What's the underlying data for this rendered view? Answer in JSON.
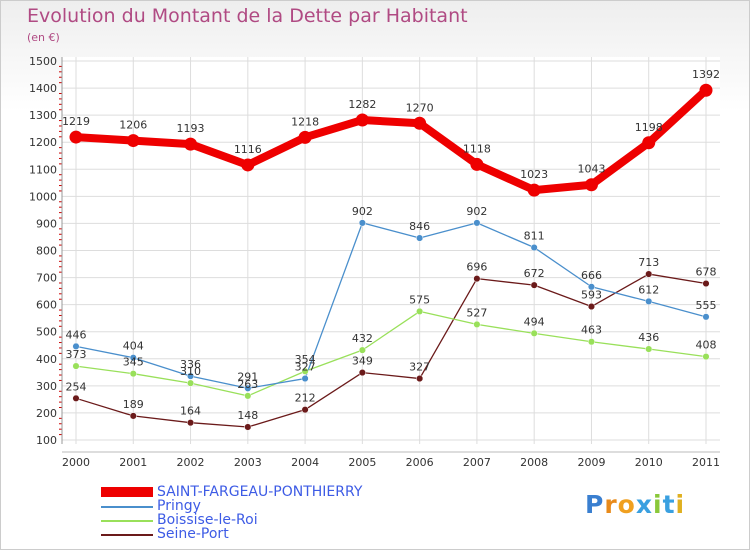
{
  "chart_data": {
    "type": "line",
    "title": "Evolution du Montant de la Dette par Habitant",
    "subtitle": "(en €)",
    "x": [
      "2000",
      "2001",
      "2002",
      "2003",
      "2004",
      "2005",
      "2006",
      "2007",
      "2008",
      "2009",
      "2010",
      "2011"
    ],
    "yticks": [
      "100",
      "200",
      "300",
      "400",
      "500",
      "600",
      "700",
      "800",
      "900",
      "1000",
      "1100",
      "1200",
      "1300",
      "1400",
      "1500"
    ],
    "ylim": [
      100,
      1500
    ],
    "grid": true,
    "legend_position": "bottom-left",
    "series": [
      {
        "name": "SAINT-FARGEAU-PONTHIERRY",
        "color": "#ee0000",
        "values": [
          1219,
          1206,
          1193,
          1116,
          1218,
          1282,
          1270,
          1118,
          1023,
          1043,
          1198,
          1392
        ],
        "labels": [
          "1219",
          "1206",
          "1193",
          "1116",
          "1218",
          "1282",
          "1270",
          "1118",
          "1023",
          "1043",
          "1198",
          "1392"
        ]
      },
      {
        "name": "Pringy",
        "color": "#4a8fcc",
        "values": [
          446,
          404,
          336,
          291,
          327,
          902,
          846,
          902,
          811,
          666,
          612,
          555
        ],
        "labels": [
          "446",
          "404",
          "336",
          "291",
          "327",
          "902",
          "846",
          "902",
          "811",
          "666",
          "612",
          "555"
        ]
      },
      {
        "name": "Boissise-le-Roi",
        "color": "#99e05a",
        "values": [
          373,
          345,
          310,
          263,
          354,
          432,
          575,
          527,
          494,
          463,
          436,
          408
        ],
        "labels": [
          "373",
          "345",
          "310",
          "263",
          "354",
          "432",
          "575",
          "527",
          "494",
          "463",
          "436",
          "408"
        ]
      },
      {
        "name": "Seine-Port",
        "color": "#6b1a1a",
        "values": [
          254,
          189,
          164,
          148,
          212,
          349,
          327,
          696,
          672,
          593,
          713,
          678
        ],
        "labels": [
          "254",
          "189",
          "164",
          "148",
          "212",
          "349",
          "327",
          "696",
          "672",
          "593",
          "713",
          "678"
        ]
      }
    ]
  },
  "legend": [
    "SAINT-FARGEAU-PONTHIERRY",
    "Pringy",
    "Boissise-le-Roi",
    "Seine-Port"
  ],
  "logo": {
    "text": "Proxiti",
    "letters": [
      "P",
      "r",
      "o",
      "x",
      "i",
      "t",
      "i"
    ],
    "colors": [
      "#3a7fd0",
      "#e88a1a",
      "#f0a020",
      "#3aa0e0",
      "#8ac83a",
      "#3aa0e0",
      "#e0b020"
    ]
  }
}
